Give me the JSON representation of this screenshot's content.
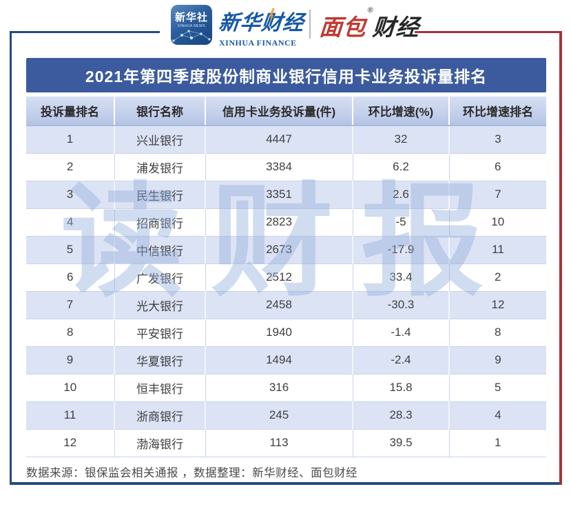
{
  "header": {
    "xinhua_news": {
      "cn": "新华社",
      "en": "XINHUA NEWS"
    },
    "xinhua_finance": {
      "cn": "新华财经",
      "en": "XINHUA FINANCE"
    },
    "mianbao_caijing": {
      "cn_red": "面包",
      "cn_dark": "财经",
      "reg_mark": "®"
    }
  },
  "title": "2021年第四季度股份制商业银行信用卡业务投诉量排名",
  "watermark": "读财报",
  "table": {
    "columns": [
      "投诉量排名",
      "银行名称",
      "信用卡业务投诉量(件)",
      "环比增速(%)",
      "环比增速排名"
    ],
    "rows": [
      [
        "1",
        "兴业银行",
        "4447",
        "32",
        "3"
      ],
      [
        "2",
        "浦发银行",
        "3384",
        "6.2",
        "6"
      ],
      [
        "3",
        "民生银行",
        "3351",
        "2.6",
        "7"
      ],
      [
        "4",
        "招商银行",
        "2823",
        "-5",
        "10"
      ],
      [
        "5",
        "中信银行",
        "2673",
        "-17.9",
        "11"
      ],
      [
        "6",
        "广发银行",
        "2512",
        "33.4",
        "2"
      ],
      [
        "7",
        "光大银行",
        "2458",
        "-30.3",
        "12"
      ],
      [
        "8",
        "平安银行",
        "1940",
        "-1.4",
        "8"
      ],
      [
        "9",
        "华夏银行",
        "1494",
        "-2.4",
        "9"
      ],
      [
        "10",
        "恒丰银行",
        "316",
        "15.8",
        "5"
      ],
      [
        "11",
        "浙商银行",
        "245",
        "28.3",
        "4"
      ],
      [
        "12",
        "渤海银行",
        "113",
        "39.5",
        "1"
      ]
    ]
  },
  "footer": "数据来源：银保监会相关通报 ，数据整理：新华财经、面包财经",
  "colors": {
    "title_bar": "#3c5b9e",
    "frame_blue": "#27497c",
    "frame_red": "#a2343a",
    "header_row": "#c0cdea",
    "row_alt": "#dce3f5",
    "watermark": "#90acd8",
    "brand_blue": "#1558a6",
    "brand_red": "#bf3a31"
  },
  "chart_data": {
    "type": "table",
    "title": "2021年第四季度股份制商业银行信用卡业务投诉量排名",
    "columns": [
      "投诉量排名",
      "银行名称",
      "信用卡业务投诉量(件)",
      "环比增速(%)",
      "环比增速排名"
    ],
    "records": [
      {
        "complaint_rank": 1,
        "bank": "兴业银行",
        "complaints": 4447,
        "qoq_growth_pct": 32,
        "growth_rank": 3
      },
      {
        "complaint_rank": 2,
        "bank": "浦发银行",
        "complaints": 3384,
        "qoq_growth_pct": 6.2,
        "growth_rank": 6
      },
      {
        "complaint_rank": 3,
        "bank": "民生银行",
        "complaints": 3351,
        "qoq_growth_pct": 2.6,
        "growth_rank": 7
      },
      {
        "complaint_rank": 4,
        "bank": "招商银行",
        "complaints": 2823,
        "qoq_growth_pct": -5,
        "growth_rank": 10
      },
      {
        "complaint_rank": 5,
        "bank": "中信银行",
        "complaints": 2673,
        "qoq_growth_pct": -17.9,
        "growth_rank": 11
      },
      {
        "complaint_rank": 6,
        "bank": "广发银行",
        "complaints": 2512,
        "qoq_growth_pct": 33.4,
        "growth_rank": 2
      },
      {
        "complaint_rank": 7,
        "bank": "光大银行",
        "complaints": 2458,
        "qoq_growth_pct": -30.3,
        "growth_rank": 12
      },
      {
        "complaint_rank": 8,
        "bank": "平安银行",
        "complaints": 1940,
        "qoq_growth_pct": -1.4,
        "growth_rank": 8
      },
      {
        "complaint_rank": 9,
        "bank": "华夏银行",
        "complaints": 1494,
        "qoq_growth_pct": -2.4,
        "growth_rank": 9
      },
      {
        "complaint_rank": 10,
        "bank": "恒丰银行",
        "complaints": 316,
        "qoq_growth_pct": 15.8,
        "growth_rank": 5
      },
      {
        "complaint_rank": 11,
        "bank": "浙商银行",
        "complaints": 245,
        "qoq_growth_pct": 28.3,
        "growth_rank": 4
      },
      {
        "complaint_rank": 12,
        "bank": "渤海银行",
        "complaints": 113,
        "qoq_growth_pct": 39.5,
        "growth_rank": 1
      }
    ],
    "source_note": "数据来源：银保监会相关通报 ，数据整理：新华财经、面包财经"
  }
}
